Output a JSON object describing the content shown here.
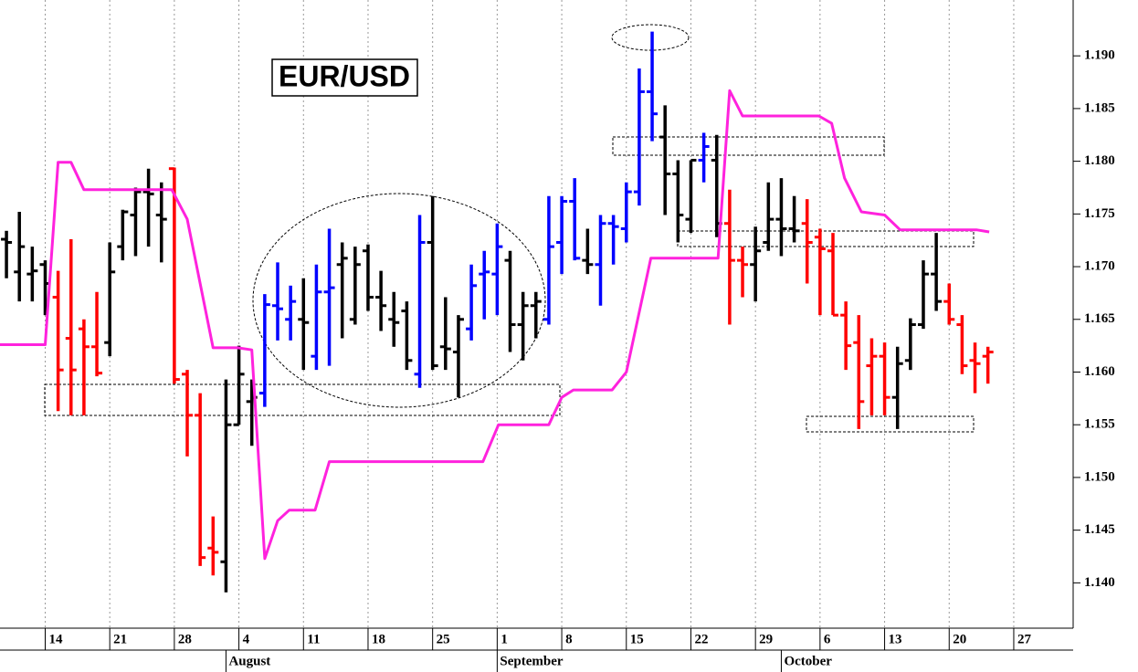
{
  "chart_data": {
    "type": "ohlc",
    "title": "EUR/USD",
    "x": [
      -3,
      -2,
      -1,
      0,
      1,
      2,
      3,
      4,
      5,
      6,
      7,
      8,
      9,
      10,
      11,
      12,
      13,
      14,
      15,
      16,
      17,
      18,
      19,
      20,
      21,
      22,
      23,
      24,
      25,
      26,
      27,
      28,
      29,
      30,
      31,
      32,
      33,
      34,
      35,
      36,
      37,
      38,
      39,
      40,
      41,
      42,
      43,
      44,
      45,
      46,
      47,
      48,
      49,
      50,
      51,
      52,
      53,
      54,
      55,
      56,
      57,
      58,
      59,
      60,
      61,
      62,
      63,
      64,
      65,
      66,
      67,
      68,
      69,
      70,
      71,
      72,
      73
    ],
    "open": [
      1.1726,
      1.1695,
      1.1693,
      1.1702,
      1.1671,
      1.1632,
      1.1641,
      1.1624,
      1.1628,
      1.1719,
      1.1749,
      1.1771,
      1.1749,
      1.1793,
      1.1598,
      1.1559,
      1.1433,
      1.142,
      1.155,
      1.1572,
      1.158,
      1.1663,
      1.165,
      1.165,
      1.1615,
      1.1676,
      1.1702,
      1.165,
      1.1715,
      1.1671,
      1.165,
      1.1658,
      1.1598,
      1.1723,
      1.1624,
      1.1619,
      1.1641,
      1.1693,
      1.1693,
      1.1706,
      1.1645,
      1.1663,
      1.165,
      1.1723,
      1.1762,
      1.1706,
      1.1702,
      1.1741,
      1.1736,
      1.1771,
      1.1866,
      1.1823,
      1.1788,
      1.1745,
      1.1801,
      1.1801,
      1.1741,
      1.1706,
      1.1702,
      1.1723,
      1.1745,
      1.1736,
      1.1741,
      1.1728,
      1.1715,
      1.1654,
      1.1628,
      1.1606,
      1.1615,
      1.1576,
      1.1611,
      1.1645,
      1.1693,
      1.1667,
      1.1645,
      1.1611,
      1.1615
    ],
    "high": [
      1.1734,
      1.1752,
      1.1719,
      1.1706,
      1.1696,
      1.1726,
      1.165,
      1.1676,
      1.1723,
      1.1754,
      1.1775,
      1.1793,
      1.178,
      1.1794,
      1.1602,
      1.158,
      1.1463,
      1.1593,
      1.1625,
      1.1593,
      1.1674,
      1.1704,
      1.1682,
      1.1689,
      1.1702,
      1.1736,
      1.1723,
      1.1719,
      1.1721,
      1.1696,
      1.1676,
      1.1667,
      1.1749,
      1.1767,
      1.1671,
      1.1654,
      1.1702,
      1.1715,
      1.1741,
      1.1715,
      1.1676,
      1.1676,
      1.1767,
      1.1767,
      1.1784,
      1.1736,
      1.1749,
      1.1749,
      1.178,
      1.1888,
      1.1923,
      1.1853,
      1.1801,
      1.1801,
      1.1827,
      1.1825,
      1.1773,
      1.1719,
      1.1738,
      1.178,
      1.1784,
      1.1767,
      1.1764,
      1.1736,
      1.1732,
      1.1667,
      1.1654,
      1.1632,
      1.1628,
      1.1624,
      1.1651,
      1.1706,
      1.1732,
      1.1684,
      1.1654,
      1.1628,
      1.1624
    ],
    "low": [
      1.1689,
      1.1667,
      1.1667,
      1.1654,
      1.1563,
      1.1559,
      1.1559,
      1.1596,
      1.1615,
      1.1706,
      1.171,
      1.1719,
      1.1704,
      1.1589,
      1.152,
      1.1416,
      1.1407,
      1.1391,
      1.155,
      1.153,
      1.1567,
      1.163,
      1.163,
      1.1602,
      1.1602,
      1.1606,
      1.1632,
      1.1645,
      1.1658,
      1.1639,
      1.1624,
      1.1602,
      1.1585,
      1.1602,
      1.1602,
      1.1576,
      1.163,
      1.165,
      1.1654,
      1.1619,
      1.1611,
      1.1632,
      1.1645,
      1.1693,
      1.1706,
      1.1693,
      1.1663,
      1.1702,
      1.1723,
      1.1758,
      1.1819,
      1.1749,
      1.1723,
      1.1732,
      1.178,
      1.1728,
      1.1645,
      1.1671,
      1.1667,
      1.1715,
      1.171,
      1.1723,
      1.1684,
      1.1654,
      1.1654,
      1.1602,
      1.1546,
      1.1559,
      1.1559,
      1.1546,
      1.1602,
      1.1641,
      1.1658,
      1.1645,
      1.1598,
      1.158,
      1.1589
    ],
    "close": [
      1.1723,
      1.1719,
      1.1696,
      1.1684,
      1.1602,
      1.1602,
      1.1624,
      1.1599,
      1.1695,
      1.1752,
      1.1771,
      1.1769,
      1.1745,
      1.1593,
      1.1559,
      1.1424,
      1.1429,
      1.155,
      1.1598,
      1.1576,
      1.1664,
      1.166,
      1.1667,
      1.1647,
      1.1676,
      1.168,
      1.1708,
      1.1702,
      1.1671,
      1.1663,
      1.1647,
      1.1611,
      1.1723,
      1.1606,
      1.1622,
      1.165,
      1.1682,
      1.1695,
      1.1719,
      1.1645,
      1.1663,
      1.1667,
      1.1719,
      1.1762,
      1.1708,
      1.1702,
      1.1741,
      1.1738,
      1.1771,
      1.1866,
      1.1845,
      1.1788,
      1.1749,
      1.1801,
      1.1814,
      1.1741,
      1.1706,
      1.1702,
      1.1715,
      1.1745,
      1.1736,
      1.1734,
      1.1723,
      1.1717,
      1.1654,
      1.1625,
      1.1572,
      1.1615,
      1.1576,
      1.1608,
      1.1645,
      1.1693,
      1.1667,
      1.165,
      1.1606,
      1.1608,
      1.1619
    ],
    "colors": [
      "#000000",
      "#000000",
      "#000000",
      "#000000",
      "#ff0000",
      "#ff0000",
      "#ff0000",
      "#ff0000",
      "#000000",
      "#000000",
      "#000000",
      "#000000",
      "#000000",
      "#ff0000",
      "#ff0000",
      "#ff0000",
      "#ff0000",
      "#000000",
      "#000000",
      "#000000",
      "#0000ff",
      "#0000ff",
      "#0000ff",
      "#000000",
      "#0000ff",
      "#0000ff",
      "#000000",
      "#000000",
      "#000000",
      "#000000",
      "#000000",
      "#000000",
      "#0000ff",
      "#000000",
      "#000000",
      "#000000",
      "#0000ff",
      "#0000ff",
      "#0000ff",
      "#000000",
      "#000000",
      "#000000",
      "#0000ff",
      "#0000ff",
      "#0000ff",
      "#000000",
      "#0000ff",
      "#0000ff",
      "#0000ff",
      "#0000ff",
      "#0000ff",
      "#000000",
      "#000000",
      "#000000",
      "#0000ff",
      "#000000",
      "#ff0000",
      "#ff0000",
      "#000000",
      "#000000",
      "#000000",
      "#000000",
      "#ff0000",
      "#ff0000",
      "#ff0000",
      "#ff0000",
      "#ff0000",
      "#ff0000",
      "#ff0000",
      "#000000",
      "#000000",
      "#000000",
      "#000000",
      "#ff0000",
      "#ff0000",
      "#ff0000",
      "#ff0000"
    ],
    "line": {
      "color": "#ff22dd",
      "x": [
        -3.5,
        0,
        1,
        2,
        3,
        9.8,
        11,
        13,
        14.9,
        16,
        17,
        18,
        18.9,
        20.9,
        22,
        33.9,
        35.1,
        39,
        40,
        40.9,
        43.9,
        45,
        46.9,
        52.1,
        53,
        54,
        59.9,
        60.9,
        61.9,
        63.2,
        65,
        66.2,
        72.1,
        73.1
      ],
      "values": [
        1.1626,
        1.1626,
        1.1799,
        1.1799,
        1.1773,
        1.1773,
        1.1745,
        1.1623,
        1.1623,
        1.1621,
        1.1423,
        1.1459,
        1.1469,
        1.1469,
        1.1515,
        1.1515,
        1.155,
        1.155,
        1.1576,
        1.1583,
        1.1583,
        1.16,
        1.1708,
        1.1708,
        1.1867,
        1.1843,
        1.1843,
        1.1836,
        1.1784,
        1.1752,
        1.1749,
        1.1735,
        1.1735,
        1.1733
      ]
    },
    "xlim": [
      -3.5,
      79.6
    ],
    "ylim": [
      1.1357,
      1.1953
    ],
    "grid": true,
    "xticks": [
      {
        "value": 0,
        "label": "14"
      },
      {
        "value": 5,
        "label": "21"
      },
      {
        "value": 10,
        "label": "28"
      },
      {
        "value": 15,
        "label": "4"
      },
      {
        "value": 20,
        "label": "11"
      },
      {
        "value": 25,
        "label": "18"
      },
      {
        "value": 30,
        "label": "25"
      },
      {
        "value": 35,
        "label": "1"
      },
      {
        "value": 40,
        "label": "8"
      },
      {
        "value": 45,
        "label": "15"
      },
      {
        "value": 50,
        "label": "22"
      },
      {
        "value": 55,
        "label": "29"
      },
      {
        "value": 60,
        "label": "6"
      },
      {
        "value": 65,
        "label": "13"
      },
      {
        "value": 70,
        "label": "20"
      },
      {
        "value": 75,
        "label": "27"
      }
    ],
    "month_ticks": [
      {
        "value": 14,
        "label": "August"
      },
      {
        "value": 35,
        "label": "September"
      },
      {
        "value": 57,
        "label": "October"
      }
    ],
    "yticks": [
      {
        "value": 1.14,
        "label": "1.140"
      },
      {
        "value": 1.145,
        "label": "1.145"
      },
      {
        "value": 1.15,
        "label": "1.150"
      },
      {
        "value": 1.155,
        "label": "1.155"
      },
      {
        "value": 1.16,
        "label": "1.160"
      },
      {
        "value": 1.165,
        "label": "1.165"
      },
      {
        "value": 1.17,
        "label": "1.170"
      },
      {
        "value": 1.175,
        "label": "1.175"
      },
      {
        "value": 1.18,
        "label": "1.180"
      },
      {
        "value": 1.185,
        "label": "1.185"
      },
      {
        "value": 1.19,
        "label": "1.190"
      }
    ]
  }
}
